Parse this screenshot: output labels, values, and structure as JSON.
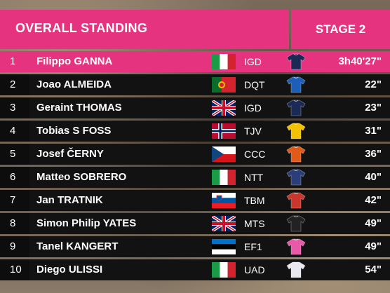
{
  "header": {
    "title": "OVERALL STANDING",
    "stage": "STAGE 2"
  },
  "standings": [
    {
      "pos": "1",
      "name": "Filippo GANNA",
      "country": "Italy",
      "team": "IGD",
      "time": "3h40'27\"",
      "jersey_color": "#1b2a55"
    },
    {
      "pos": "2",
      "name": "Joao ALMEIDA",
      "country": "Portugal",
      "team": "DQT",
      "time": "22\"",
      "jersey_color": "#1d5fb8"
    },
    {
      "pos": "3",
      "name": "Geraint THOMAS",
      "country": "United Kingdom",
      "team": "IGD",
      "time": "23\"",
      "jersey_color": "#1b2a55"
    },
    {
      "pos": "4",
      "name": "Tobias S FOSS",
      "country": "Norway",
      "team": "TJV",
      "time": "31\"",
      "jersey_color": "#f2c200"
    },
    {
      "pos": "5",
      "name": "Josef ČERNY",
      "country": "Czech Republic",
      "team": "CCC",
      "time": "36\"",
      "jersey_color": "#e05a1a"
    },
    {
      "pos": "6",
      "name": "Matteo SOBRERO",
      "country": "Italy",
      "team": "NTT",
      "time": "40\"",
      "jersey_color": "#2a3f7a"
    },
    {
      "pos": "7",
      "name": "Jan TRATNIK",
      "country": "Slovenia",
      "team": "TBM",
      "time": "42\"",
      "jersey_color": "#c9372c"
    },
    {
      "pos": "8",
      "name": "Simon Philip YATES",
      "country": "United Kingdom",
      "team": "MTS",
      "time": "49\"",
      "jersey_color": "#222222"
    },
    {
      "pos": "9",
      "name": "Tanel KANGERT",
      "country": "Estonia",
      "team": "EF1",
      "time": "49\"",
      "jersey_color": "#e85aa8"
    },
    {
      "pos": "10",
      "name": "Diego ULISSI",
      "country": "Italy",
      "team": "UAD",
      "time": "54\"",
      "jersey_color": "#e8e8ef"
    }
  ],
  "colors": {
    "accent": "#e6337f",
    "row_bg": "#121212"
  }
}
